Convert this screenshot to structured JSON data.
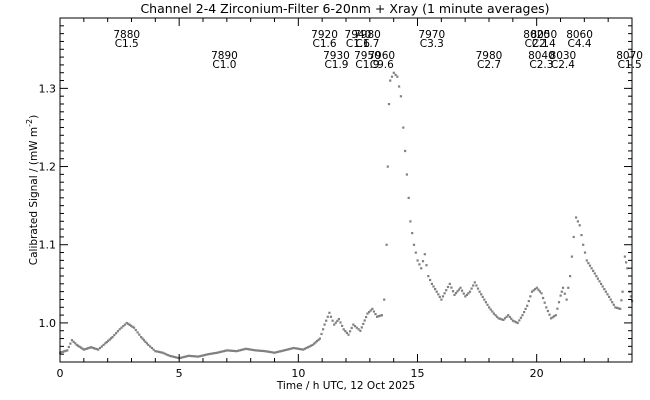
{
  "chart_data": {
    "type": "scatter",
    "title": "Channel 2-4   Zirconium-Filter   6-20nm + Xray   (1 minute averages)",
    "xlabel": "Time / h UTC, 12 Oct 2025",
    "ylabel": "Calibrated Signal / (mW m",
    "ylabel_sup": "-2",
    "ylabel_close": ")",
    "xlim": [
      0,
      24
    ],
    "ylim": [
      0.95,
      1.39
    ],
    "xticks": [
      0,
      5,
      10,
      15,
      20
    ],
    "yticks": [
      1.0,
      1.1,
      1.2,
      1.3
    ],
    "ytick_labels": [
      "1.0",
      "1.1",
      "1.2",
      "1.3"
    ],
    "grid": false,
    "marker_color": "#808080",
    "flares": [
      {
        "id": "7880",
        "cls": "C1.5",
        "x": 2.8,
        "row": 0
      },
      {
        "id": "7890",
        "cls": "C1.0",
        "x": 6.9,
        "row": 1
      },
      {
        "id": "7920",
        "cls": "C1.6",
        "x": 11.1,
        "row": 0
      },
      {
        "id": "7930",
        "cls": "C1.9",
        "x": 11.6,
        "row": 1
      },
      {
        "id": "7940",
        "cls": "C1.6",
        "x": 12.5,
        "row": 0
      },
      {
        "id": "7950",
        "cls": "C1.9",
        "x": 12.9,
        "row": 1
      },
      {
        "id": "7980",
        "cls": "C1.7",
        "x": 12.9,
        "row": 0
      },
      {
        "id": "7960",
        "cls": "C9.6",
        "x": 13.5,
        "row": 1
      },
      {
        "id": "7970",
        "cls": "C3.3",
        "x": 15.6,
        "row": 0
      },
      {
        "id": "7980",
        "cls": "C2.7",
        "x": 18.0,
        "row": 1
      },
      {
        "id": "8020",
        "cls": "C2.1",
        "x": 20.0,
        "row": 0
      },
      {
        "id": "8050",
        "cls": "C2.4",
        "x": 20.3,
        "row": 0
      },
      {
        "id": "8040",
        "cls": "C2.3",
        "x": 20.2,
        "row": 1
      },
      {
        "id": "8030",
        "cls": "C2.4",
        "x": 21.1,
        "row": 1
      },
      {
        "id": "8060",
        "cls": "C4.4",
        "x": 21.8,
        "row": 0
      },
      {
        "id": "8070",
        "cls": "C1.5",
        "x": 23.9,
        "row": 1
      }
    ],
    "series": [
      {
        "points": [
          [
            0.0,
            0.962
          ],
          [
            0.3,
            0.965
          ],
          [
            0.5,
            0.978
          ],
          [
            0.7,
            0.972
          ],
          [
            1.0,
            0.966
          ],
          [
            1.3,
            0.969
          ],
          [
            1.6,
            0.966
          ],
          [
            1.9,
            0.974
          ],
          [
            2.2,
            0.982
          ],
          [
            2.5,
            0.992
          ],
          [
            2.8,
            1.0
          ],
          [
            3.1,
            0.994
          ],
          [
            3.4,
            0.982
          ],
          [
            3.7,
            0.972
          ],
          [
            4.0,
            0.964
          ],
          [
            4.3,
            0.962
          ],
          [
            4.6,
            0.958
          ],
          [
            5.0,
            0.955
          ],
          [
            5.4,
            0.958
          ],
          [
            5.8,
            0.957
          ],
          [
            6.2,
            0.96
          ],
          [
            6.6,
            0.962
          ],
          [
            7.0,
            0.965
          ],
          [
            7.4,
            0.964
          ],
          [
            7.8,
            0.967
          ],
          [
            8.2,
            0.965
          ],
          [
            8.6,
            0.964
          ],
          [
            9.0,
            0.962
          ],
          [
            9.4,
            0.965
          ],
          [
            9.8,
            0.968
          ],
          [
            10.2,
            0.966
          ],
          [
            10.6,
            0.972
          ],
          [
            10.9,
            0.98
          ],
          [
            11.1,
            0.998
          ],
          [
            11.3,
            1.013
          ],
          [
            11.5,
            0.998
          ],
          [
            11.7,
            1.005
          ],
          [
            11.9,
            0.992
          ],
          [
            12.1,
            0.985
          ],
          [
            12.3,
            0.998
          ],
          [
            12.6,
            0.99
          ],
          [
            12.9,
            1.012
          ],
          [
            13.1,
            1.018
          ],
          [
            13.3,
            1.008
          ],
          [
            13.5,
            1.01
          ],
          [
            13.6,
            1.03
          ],
          [
            13.7,
            1.1
          ],
          [
            13.75,
            1.2
          ],
          [
            13.8,
            1.28
          ],
          [
            13.85,
            1.31
          ],
          [
            14.0,
            1.32
          ],
          [
            14.15,
            1.315
          ],
          [
            14.3,
            1.29
          ],
          [
            14.4,
            1.25
          ],
          [
            14.55,
            1.19
          ],
          [
            14.7,
            1.13
          ],
          [
            14.85,
            1.1
          ],
          [
            15.0,
            1.08
          ],
          [
            15.15,
            1.07
          ],
          [
            15.3,
            1.088
          ],
          [
            15.45,
            1.06
          ],
          [
            15.6,
            1.05
          ],
          [
            15.8,
            1.04
          ],
          [
            16.0,
            1.03
          ],
          [
            16.2,
            1.042
          ],
          [
            16.35,
            1.05
          ],
          [
            16.55,
            1.036
          ],
          [
            16.8,
            1.045
          ],
          [
            17.0,
            1.034
          ],
          [
            17.2,
            1.04
          ],
          [
            17.4,
            1.052
          ],
          [
            17.6,
            1.04
          ],
          [
            17.8,
            1.03
          ],
          [
            18.0,
            1.02
          ],
          [
            18.2,
            1.012
          ],
          [
            18.4,
            1.006
          ],
          [
            18.6,
            1.004
          ],
          [
            18.8,
            1.01
          ],
          [
            19.0,
            1.003
          ],
          [
            19.2,
            1.0
          ],
          [
            19.4,
            1.01
          ],
          [
            19.6,
            1.022
          ],
          [
            19.8,
            1.04
          ],
          [
            20.0,
            1.045
          ],
          [
            20.2,
            1.038
          ],
          [
            20.4,
            1.02
          ],
          [
            20.6,
            1.006
          ],
          [
            20.8,
            1.01
          ],
          [
            21.0,
            1.035
          ],
          [
            21.1,
            1.045
          ],
          [
            21.25,
            1.03
          ],
          [
            21.4,
            1.06
          ],
          [
            21.55,
            1.11
          ],
          [
            21.65,
            1.135
          ],
          [
            21.8,
            1.125
          ],
          [
            21.95,
            1.1
          ],
          [
            22.1,
            1.08
          ],
          [
            22.3,
            1.07
          ],
          [
            22.5,
            1.06
          ],
          [
            22.7,
            1.05
          ],
          [
            22.9,
            1.04
          ],
          [
            23.1,
            1.03
          ],
          [
            23.3,
            1.02
          ],
          [
            23.5,
            1.018
          ],
          [
            23.6,
            1.04
          ],
          [
            23.7,
            1.085
          ],
          [
            23.8,
            1.07
          ],
          [
            23.9,
            1.04
          ],
          [
            24.0,
            1.028
          ]
        ]
      }
    ]
  }
}
